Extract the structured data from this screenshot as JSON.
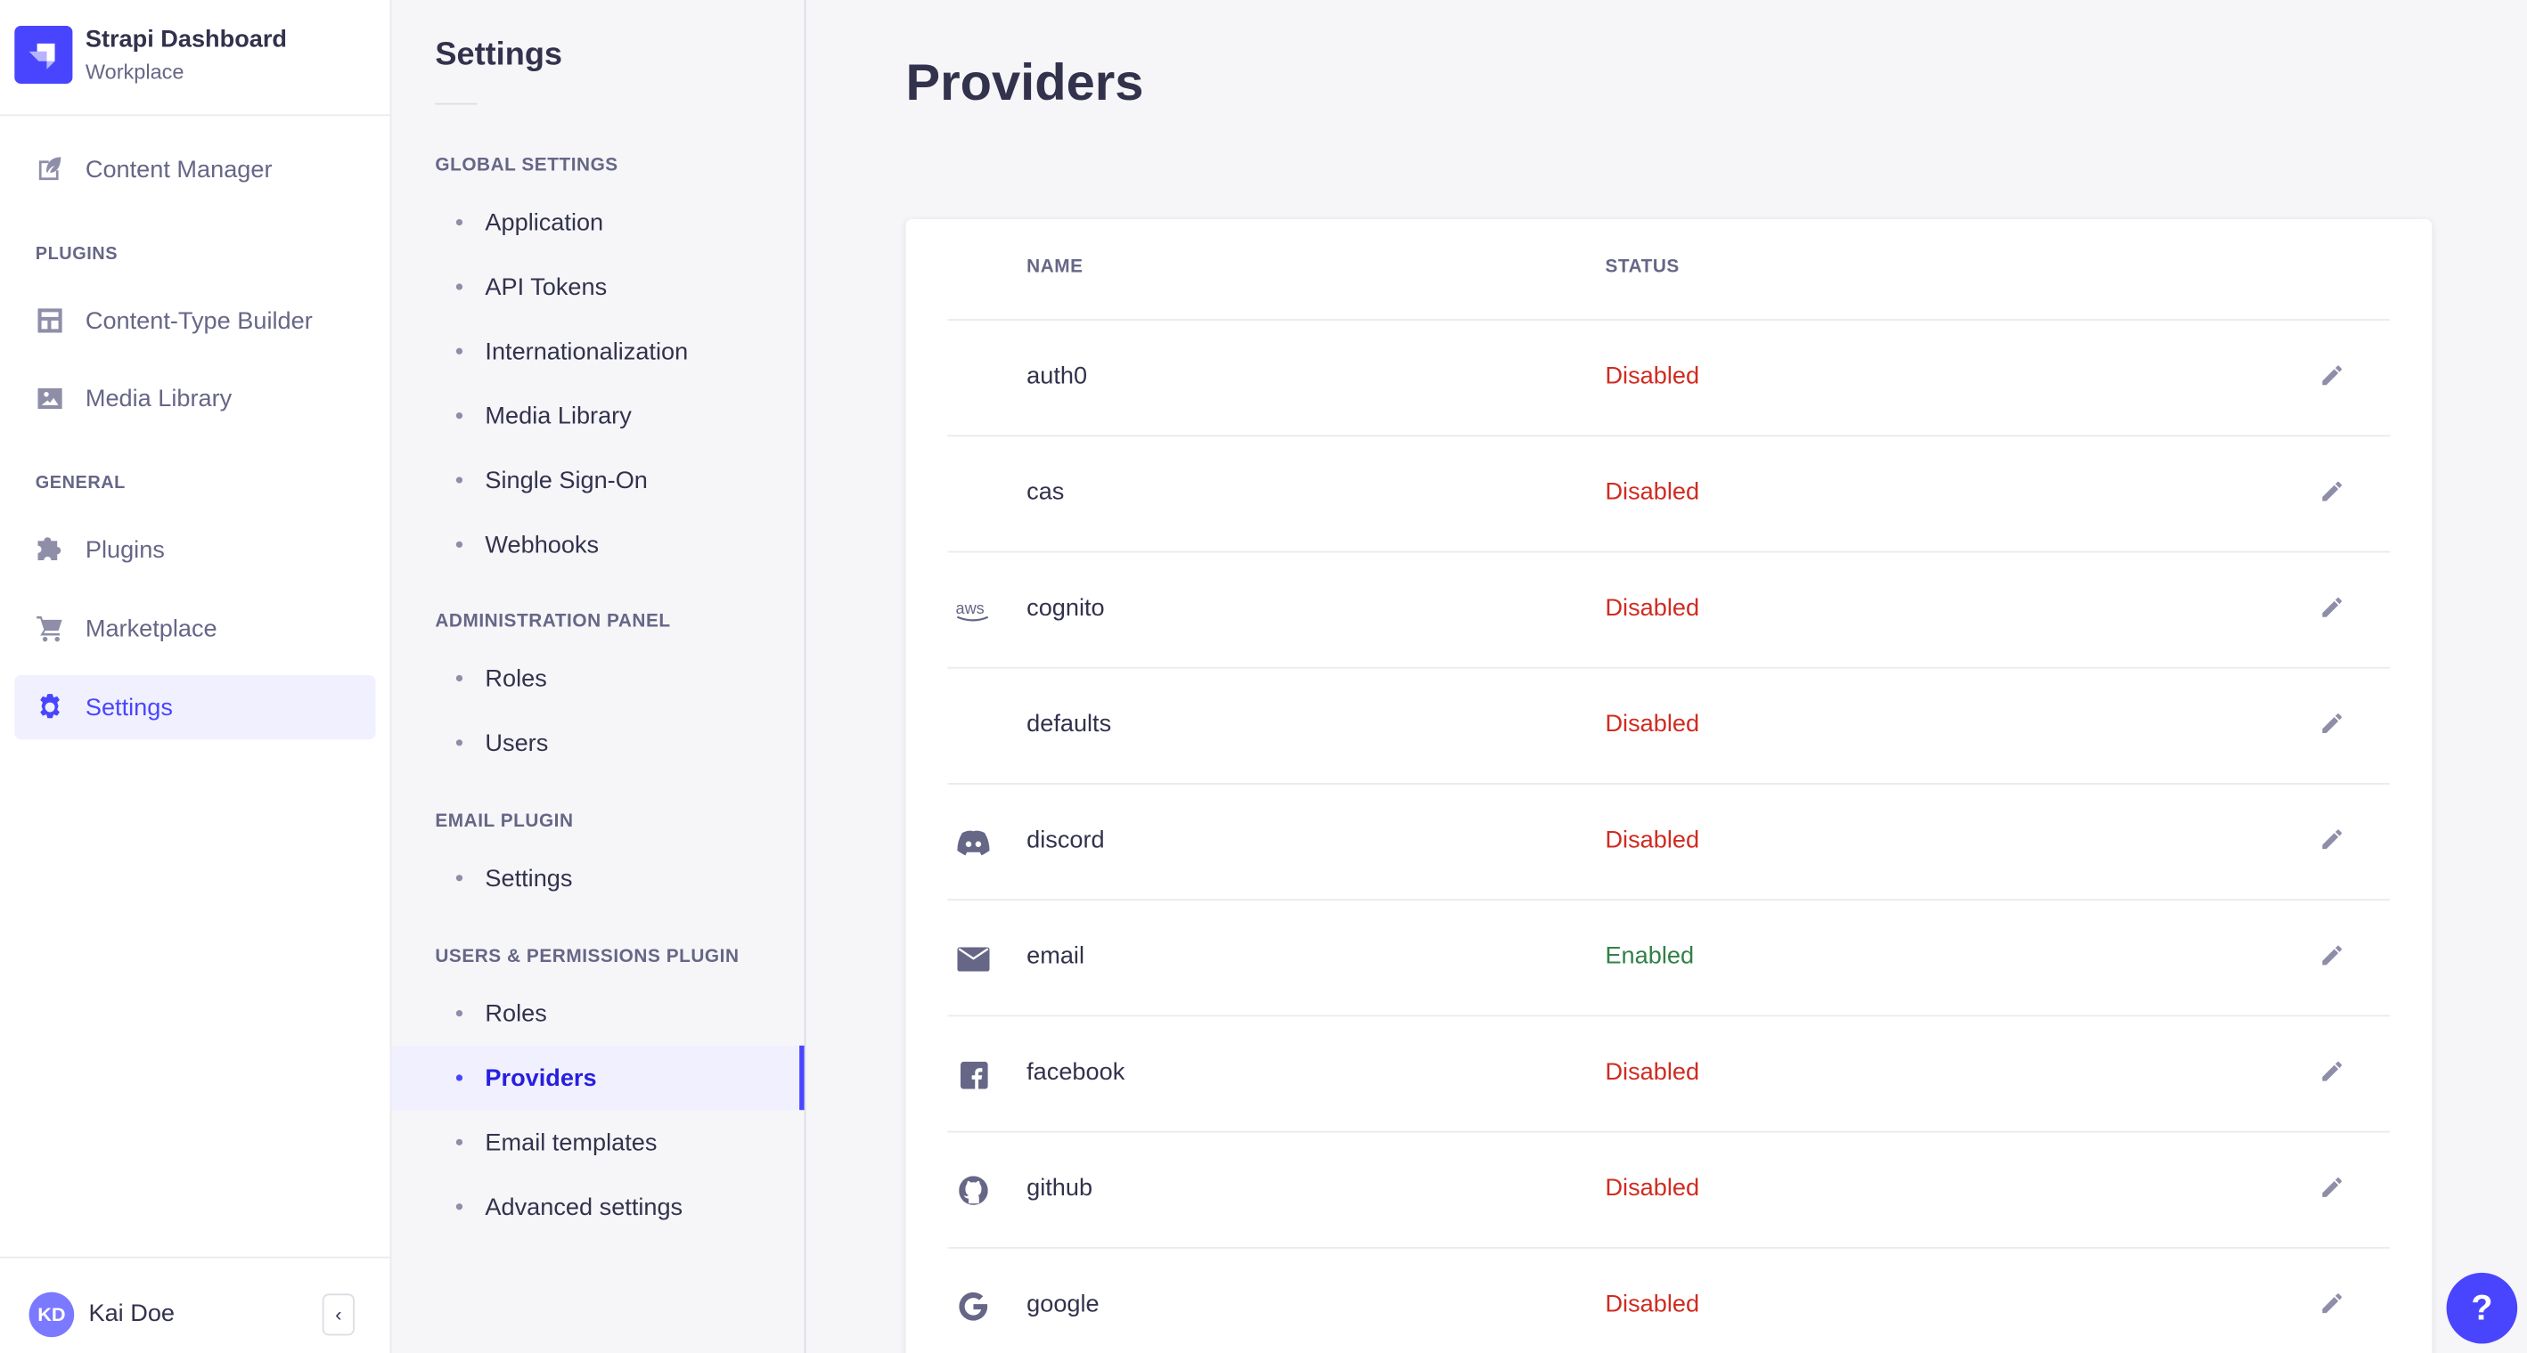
{
  "nav": {
    "brand": "Strapi Dashboard",
    "workspace": "Workplace",
    "content_manager": "Content Manager",
    "plugins_label": "PLUGINS",
    "ctb": "Content-Type Builder",
    "media": "Media Library",
    "general_label": "GENERAL",
    "plugins": "Plugins",
    "marketplace": "Marketplace",
    "settings": "Settings",
    "user_initials": "KD",
    "user_name": "Kai Doe",
    "collapse": "‹"
  },
  "settings_nav": {
    "title": "Settings",
    "sections": [
      {
        "label": "GLOBAL SETTINGS",
        "items": [
          "Application",
          "API Tokens",
          "Internationalization",
          "Media Library",
          "Single Sign-On",
          "Webhooks"
        ]
      },
      {
        "label": "ADMINISTRATION PANEL",
        "items": [
          "Roles",
          "Users"
        ]
      },
      {
        "label": "EMAIL PLUGIN",
        "items": [
          "Settings"
        ]
      },
      {
        "label": "USERS & PERMISSIONS PLUGIN",
        "items": [
          "Roles",
          "Providers",
          "Email templates",
          "Advanced settings"
        ]
      }
    ],
    "active": "Providers"
  },
  "main": {
    "title": "Providers",
    "columns": {
      "name": "NAME",
      "status": "STATUS"
    },
    "rows": [
      {
        "icon": "none",
        "name": "auth0",
        "status": "Disabled"
      },
      {
        "icon": "none",
        "name": "cas",
        "status": "Disabled"
      },
      {
        "icon": "aws-icon",
        "name": "cognito",
        "status": "Disabled"
      },
      {
        "icon": "none",
        "name": "defaults",
        "status": "Disabled"
      },
      {
        "icon": "discord-icon",
        "name": "discord",
        "status": "Disabled"
      },
      {
        "icon": "envelope-icon",
        "name": "email",
        "status": "Enabled"
      },
      {
        "icon": "facebook-icon",
        "name": "facebook",
        "status": "Disabled"
      },
      {
        "icon": "github-icon",
        "name": "github",
        "status": "Disabled"
      },
      {
        "icon": "google-icon",
        "name": "google",
        "status": "Disabled"
      }
    ]
  },
  "colors": {
    "accent": "#4945ff",
    "disabled": "#d02b20",
    "enabled": "#328048"
  },
  "help": {
    "label": "?"
  }
}
